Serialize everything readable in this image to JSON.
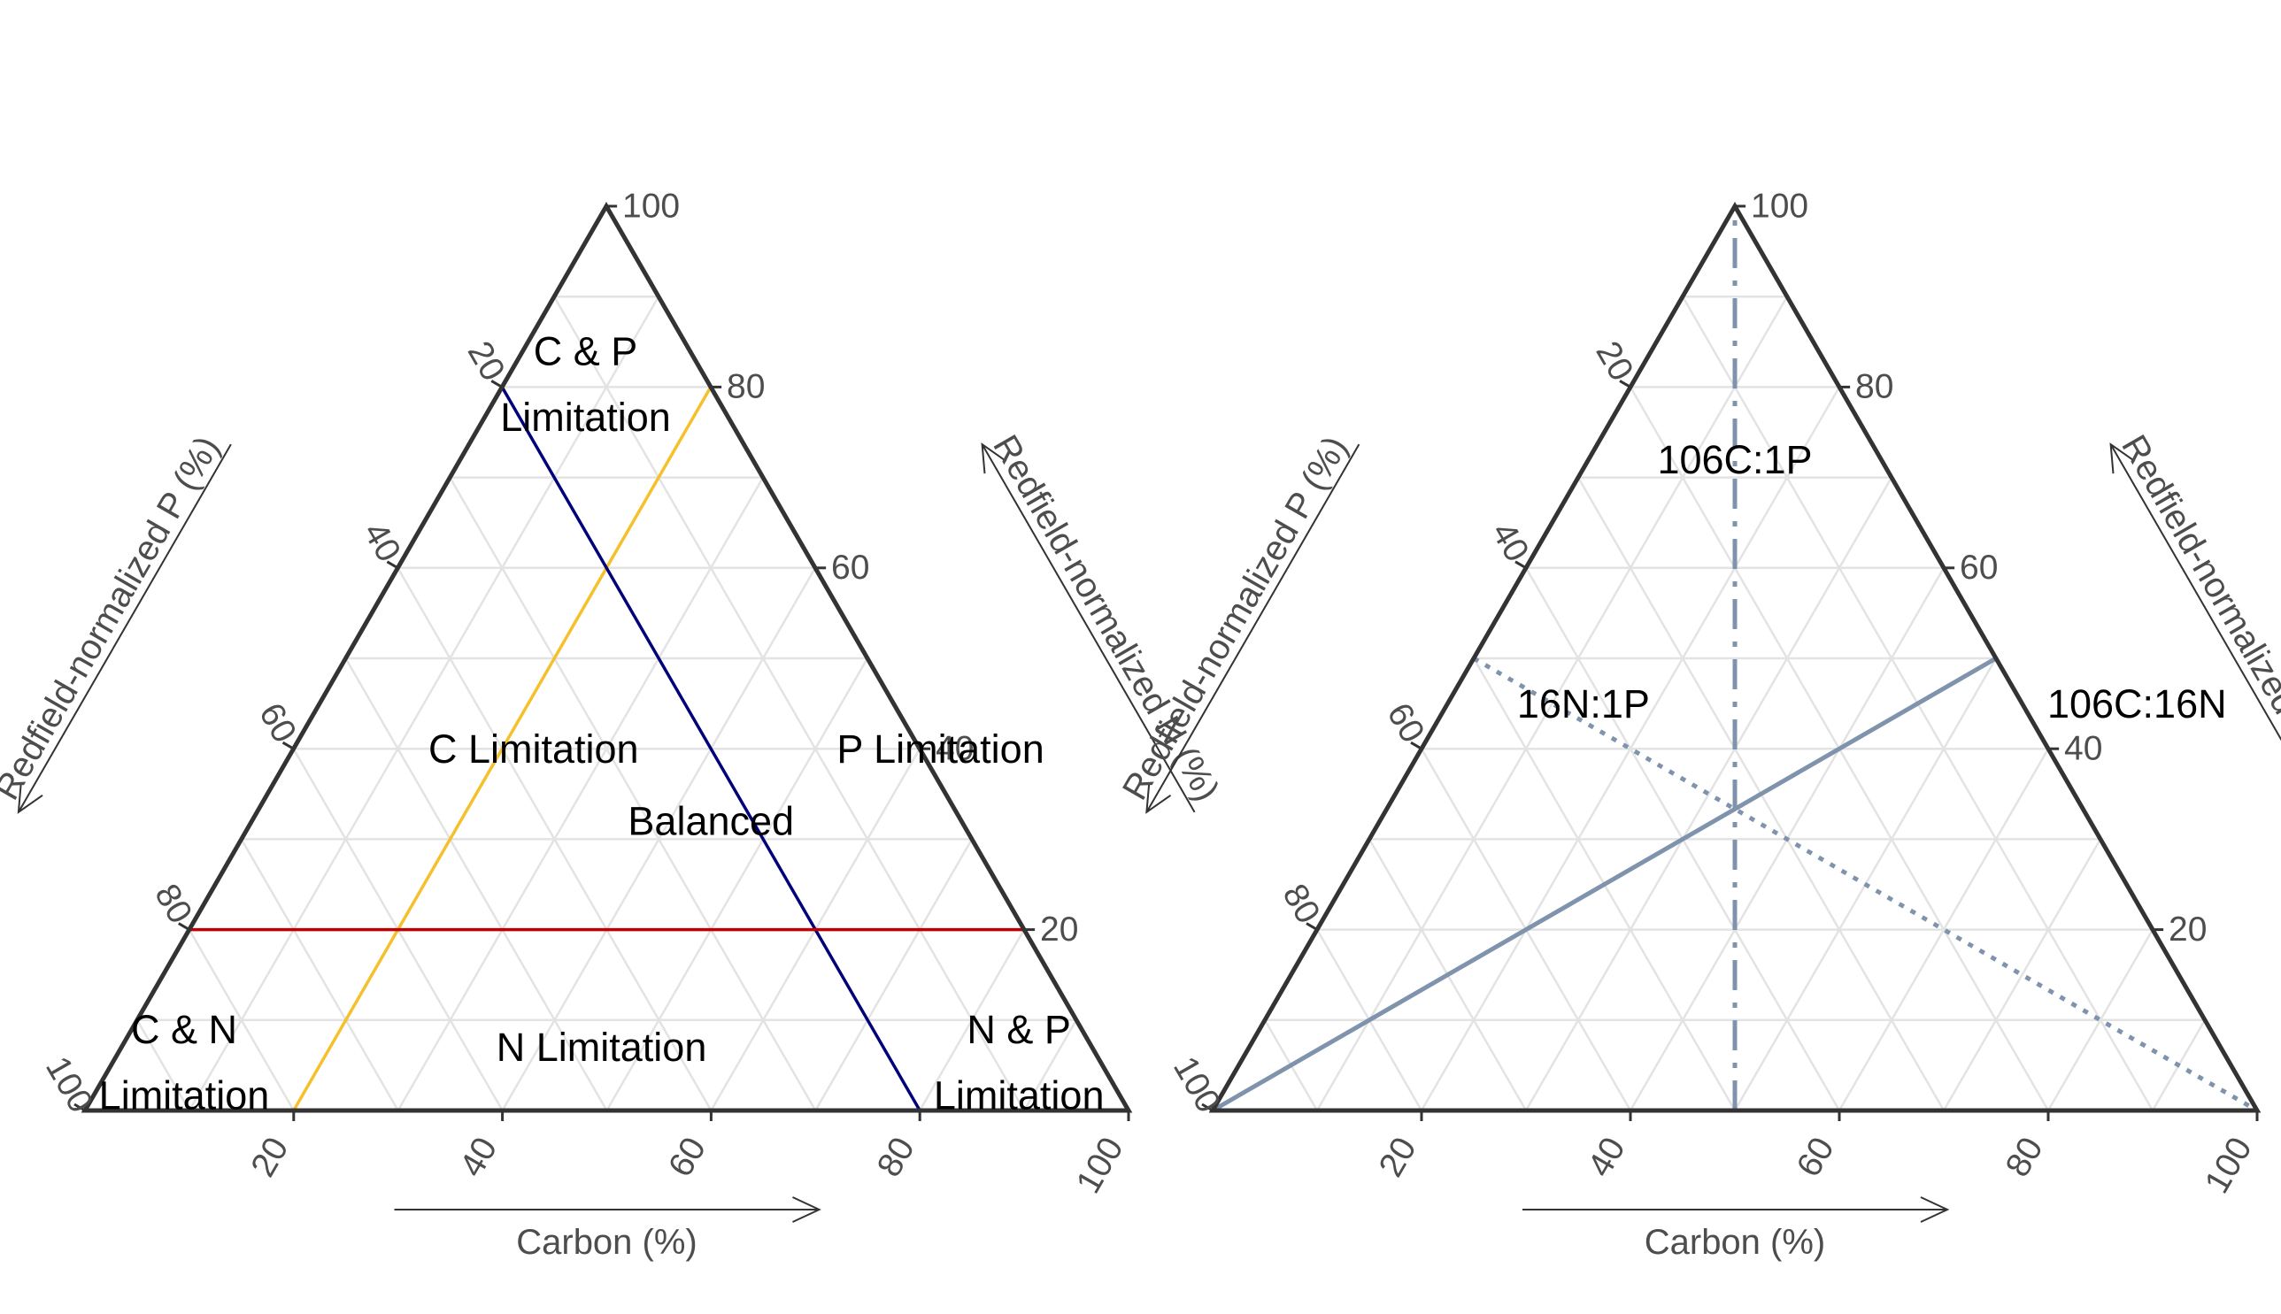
{
  "chart_data": [
    {
      "type": "ternary",
      "axes": {
        "bottom": {
          "label": "Carbon (%)",
          "ticks": [
            "20",
            "40",
            "60",
            "80",
            "100"
          ]
        },
        "left": {
          "label": "Redfield-normalized P (%)",
          "ticks": [
            "20",
            "40",
            "60",
            "80",
            "100"
          ]
        },
        "right": {
          "label": "Redfield-normalized N (%)",
          "ticks": [
            "20",
            "40",
            "60",
            "80",
            "100"
          ]
        }
      },
      "grid": true,
      "lines": [
        {
          "name": "",
          "color": "#f5c02a",
          "style": "solid",
          "from": {
            "C": 20,
            "N": 0,
            "P": 80
          },
          "to": {
            "C": 20,
            "N": 80,
            "P": 0
          }
        },
        {
          "name": "",
          "color": "#00007a",
          "style": "solid",
          "from": {
            "C": 80,
            "N": 0,
            "P": 20
          },
          "to": {
            "C": 0,
            "N": 80,
            "P": 20
          }
        },
        {
          "name": "",
          "color": "#c00000",
          "style": "solid",
          "from": {
            "C": 80,
            "N": 20,
            "P": 0
          },
          "to": {
            "C": 0,
            "N": 20,
            "P": 80
          }
        }
      ],
      "regions": [
        {
          "line1": "C & P",
          "line2": "Limitation",
          "C": 8,
          "N": 80,
          "P": 12
        },
        {
          "line1": "C Limitation",
          "line2": "",
          "C": 23,
          "N": 40,
          "P": 37
        },
        {
          "line1": "P Limitation",
          "line2": "",
          "C": 62,
          "N": 40,
          "P": -2
        },
        {
          "line1": "Balanced",
          "line2": "",
          "C": 44,
          "N": 32,
          "P": 24
        },
        {
          "line1": "C & N",
          "line2": "Limitation",
          "C": 7,
          "N": 5,
          "P": 88
        },
        {
          "line1": "N Limitation",
          "line2": "",
          "C": 46,
          "N": 7,
          "P": 47
        },
        {
          "line1": "N & P",
          "line2": "Limitation",
          "C": 87,
          "N": 5,
          "P": 8
        }
      ]
    },
    {
      "type": "ternary",
      "axes": {
        "bottom": {
          "label": "Carbon (%)",
          "ticks": [
            "20",
            "40",
            "60",
            "80",
            "100"
          ]
        },
        "left": {
          "label": "Redfield-normalized P (%)",
          "ticks": [
            "20",
            "40",
            "60",
            "80",
            "100"
          ]
        },
        "right": {
          "label": "Redfield-normalized N (%)",
          "ticks": [
            "20",
            "40",
            "60",
            "80",
            "100"
          ]
        }
      },
      "grid": true,
      "lines": [
        {
          "name": "106C:1P",
          "color": "#7f93ad",
          "style": "dashdot",
          "from": {
            "C": 50,
            "N": 0,
            "P": 50
          },
          "to": {
            "C": 0,
            "N": 100,
            "P": 0
          }
        },
        {
          "name": "16N:1P",
          "color": "#7f93ad",
          "style": "dotted",
          "from": {
            "C": 0,
            "N": 50,
            "P": 50
          },
          "to": {
            "C": 100,
            "N": 0,
            "P": 0
          }
        },
        {
          "name": "106C:16N",
          "color": "#7f93ad",
          "style": "solid",
          "from": {
            "C": 0,
            "N": 0,
            "P": 100
          },
          "to": {
            "C": 50,
            "N": 50,
            "P": 0
          }
        }
      ],
      "regions": [
        {
          "line1": "106C:1P",
          "line2": "",
          "C": 14,
          "N": 72,
          "P": 14
        },
        {
          "line1": "16N:1P",
          "line2": "",
          "C": 13,
          "N": 45,
          "P": 42
        },
        {
          "line1": "106C:16N",
          "line2": "",
          "C": 66,
          "N": 45,
          "P": -11
        }
      ]
    }
  ]
}
